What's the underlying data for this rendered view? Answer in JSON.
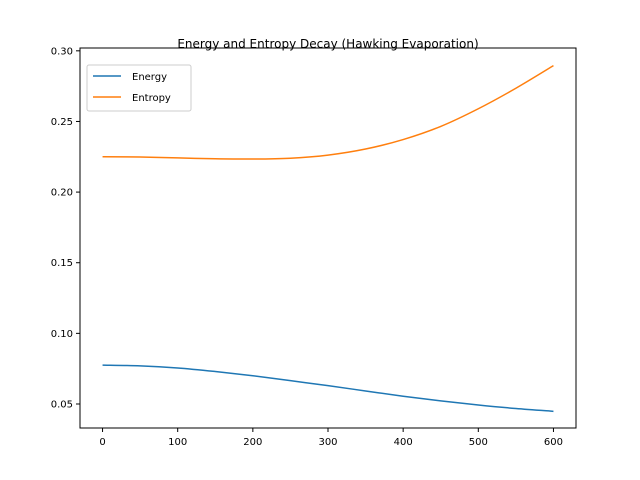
{
  "chart_data": {
    "type": "line",
    "title": "Energy and Entropy Decay (Hawking Evaporation)",
    "xlabel": "",
    "ylabel": "",
    "xlim": [
      -30,
      630
    ],
    "ylim": [
      0.033,
      0.302
    ],
    "xticks": [
      0,
      100,
      200,
      300,
      400,
      500,
      600
    ],
    "yticks": [
      0.05,
      0.1,
      0.15,
      0.2,
      0.25,
      0.3
    ],
    "ytick_labels": [
      "0.05",
      "0.10",
      "0.15",
      "0.20",
      "0.25",
      "0.30"
    ],
    "grid": false,
    "legend": "top-left",
    "x": [
      0,
      50,
      100,
      150,
      200,
      250,
      300,
      350,
      400,
      450,
      500,
      550,
      600
    ],
    "series": [
      {
        "name": "Energy",
        "color": "#1f77b4",
        "values": [
          0.0775,
          0.077,
          0.0755,
          0.073,
          0.07,
          0.0665,
          0.063,
          0.0592,
          0.0555,
          0.0522,
          0.0493,
          0.0468,
          0.0448
        ]
      },
      {
        "name": "Entropy",
        "color": "#ff7f0e",
        "values": [
          0.225,
          0.2248,
          0.2242,
          0.2236,
          0.2234,
          0.224,
          0.2262,
          0.2305,
          0.2372,
          0.2465,
          0.259,
          0.2735,
          0.2895
        ]
      }
    ]
  }
}
